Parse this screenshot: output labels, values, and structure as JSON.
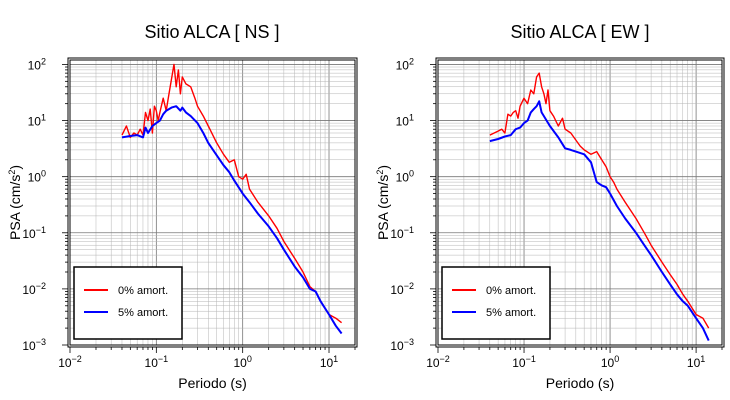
{
  "chart_data": [
    {
      "type": "line",
      "title": "Sitio ALCA [ NS ]",
      "xlabel": "Periodo (s)",
      "ylabel_main": "PSA (cm/s",
      "ylabel_exp": "2",
      "ylabel_close": ")",
      "x_scale": "log",
      "y_scale": "log",
      "xlim": [
        0.01,
        20
      ],
      "ylim": [
        0.001,
        120
      ],
      "grid": true,
      "x_ticks": [
        {
          "base": "10",
          "exp": "−2"
        },
        {
          "base": "10",
          "exp": "−1"
        },
        {
          "base": "10",
          "exp": "0"
        },
        {
          "base": "10",
          "exp": "1"
        }
      ],
      "y_ticks": [
        {
          "base": "10",
          "exp": "−3"
        },
        {
          "base": "10",
          "exp": "−2"
        },
        {
          "base": "10",
          "exp": "−1"
        },
        {
          "base": "10",
          "exp": "0"
        },
        {
          "base": "10",
          "exp": "1"
        },
        {
          "base": "10",
          "exp": "2"
        }
      ],
      "legend_position": "bottom-left",
      "series": [
        {
          "name": "0% amort.",
          "color": "#ff0000",
          "x": [
            0.04,
            0.045,
            0.05,
            0.055,
            0.06,
            0.065,
            0.07,
            0.075,
            0.08,
            0.085,
            0.09,
            0.095,
            0.1,
            0.105,
            0.11,
            0.12,
            0.13,
            0.14,
            0.15,
            0.16,
            0.17,
            0.18,
            0.19,
            0.2,
            0.22,
            0.25,
            0.28,
            0.3,
            0.35,
            0.4,
            0.5,
            0.6,
            0.7,
            0.8,
            0.9,
            1.0,
            1.1,
            1.2,
            1.5,
            2.0,
            2.5,
            3.0,
            4.0,
            5.0,
            6.0,
            7.0,
            8.0,
            10.0,
            12.0,
            14.0
          ],
          "y": [
            5.5,
            8,
            5,
            6,
            5.5,
            7,
            5.5,
            14,
            10,
            16,
            6,
            18,
            15,
            10,
            14,
            25,
            15,
            30,
            55,
            100,
            40,
            80,
            30,
            60,
            45,
            40,
            25,
            18,
            12,
            8,
            4,
            2.5,
            1.8,
            2.0,
            1.0,
            0.9,
            1.1,
            0.6,
            0.35,
            0.2,
            0.12,
            0.07,
            0.035,
            0.02,
            0.011,
            0.009,
            0.006,
            0.0035,
            0.003,
            0.0025
          ]
        },
        {
          "name": "5% amort.",
          "color": "#0000ff",
          "x": [
            0.04,
            0.05,
            0.06,
            0.07,
            0.075,
            0.08,
            0.09,
            0.1,
            0.11,
            0.12,
            0.13,
            0.15,
            0.17,
            0.19,
            0.2,
            0.22,
            0.25,
            0.3,
            0.35,
            0.4,
            0.5,
            0.6,
            0.7,
            0.8,
            1.0,
            1.2,
            1.5,
            2.0,
            2.5,
            3.0,
            4.0,
            5.0,
            6.0,
            7.0,
            8.0,
            10.0,
            12.0,
            14.0
          ],
          "y": [
            5,
            5.3,
            5.5,
            5,
            7.5,
            6,
            8,
            9,
            10,
            13,
            15,
            17,
            18,
            15,
            17,
            14,
            12,
            9,
            6,
            4,
            2.4,
            1.6,
            1.2,
            0.85,
            0.5,
            0.35,
            0.22,
            0.13,
            0.08,
            0.05,
            0.025,
            0.016,
            0.01,
            0.009,
            0.006,
            0.0035,
            0.0022,
            0.0016
          ]
        }
      ]
    },
    {
      "type": "line",
      "title": "Sitio ALCA [ EW ]",
      "xlabel": "Periodo (s)",
      "ylabel_main": "PSA (cm/s",
      "ylabel_exp": "2",
      "ylabel_close": ")",
      "x_scale": "log",
      "y_scale": "log",
      "xlim": [
        0.01,
        20
      ],
      "ylim": [
        0.001,
        120
      ],
      "grid": true,
      "x_ticks": [
        {
          "base": "10",
          "exp": "−2"
        },
        {
          "base": "10",
          "exp": "−1"
        },
        {
          "base": "10",
          "exp": "0"
        },
        {
          "base": "10",
          "exp": "1"
        }
      ],
      "y_ticks": [
        {
          "base": "10",
          "exp": "−3"
        },
        {
          "base": "10",
          "exp": "−2"
        },
        {
          "base": "10",
          "exp": "−1"
        },
        {
          "base": "10",
          "exp": "0"
        },
        {
          "base": "10",
          "exp": "1"
        },
        {
          "base": "10",
          "exp": "2"
        }
      ],
      "legend_position": "bottom-left",
      "series": [
        {
          "name": "0% amort.",
          "color": "#ff0000",
          "x": [
            0.04,
            0.045,
            0.05,
            0.055,
            0.06,
            0.065,
            0.07,
            0.075,
            0.08,
            0.085,
            0.09,
            0.1,
            0.11,
            0.12,
            0.13,
            0.14,
            0.15,
            0.16,
            0.17,
            0.18,
            0.19,
            0.2,
            0.22,
            0.25,
            0.28,
            0.3,
            0.35,
            0.4,
            0.45,
            0.5,
            0.6,
            0.7,
            0.8,
            0.9,
            1.0,
            1.1,
            1.2,
            1.5,
            2.0,
            2.5,
            3.0,
            4.0,
            5.0,
            6.0,
            7.0,
            8.0,
            10.0,
            12.0,
            14.0
          ],
          "y": [
            5.5,
            6,
            6.5,
            7,
            6,
            13,
            12,
            14,
            15,
            11,
            18,
            25,
            20,
            35,
            30,
            60,
            70,
            40,
            30,
            20,
            35,
            15,
            12,
            8,
            11,
            7,
            6,
            4.5,
            3.5,
            3,
            2.5,
            2.8,
            2,
            1.5,
            1.0,
            0.8,
            0.6,
            0.35,
            0.18,
            0.1,
            0.06,
            0.03,
            0.018,
            0.012,
            0.008,
            0.006,
            0.0035,
            0.003,
            0.002
          ]
        },
        {
          "name": "5% amort.",
          "color": "#0000ff",
          "x": [
            0.04,
            0.05,
            0.06,
            0.07,
            0.08,
            0.09,
            0.1,
            0.11,
            0.12,
            0.13,
            0.14,
            0.15,
            0.16,
            0.17,
            0.2,
            0.25,
            0.3,
            0.35,
            0.4,
            0.5,
            0.6,
            0.7,
            0.8,
            0.9,
            1.0,
            1.2,
            1.5,
            2.0,
            2.5,
            3.0,
            4.0,
            5.0,
            6.0,
            7.0,
            8.0,
            10.0,
            12.0,
            14.0
          ],
          "y": [
            4.3,
            4.7,
            5.2,
            5.5,
            7,
            7.5,
            9,
            10,
            14,
            16,
            18,
            22,
            14,
            12,
            8,
            5,
            3.2,
            3,
            2.8,
            2.5,
            1.8,
            0.8,
            0.7,
            0.65,
            0.5,
            0.3,
            0.18,
            0.1,
            0.06,
            0.04,
            0.02,
            0.012,
            0.008,
            0.006,
            0.005,
            0.003,
            0.002,
            0.0012
          ]
        }
      ]
    }
  ]
}
